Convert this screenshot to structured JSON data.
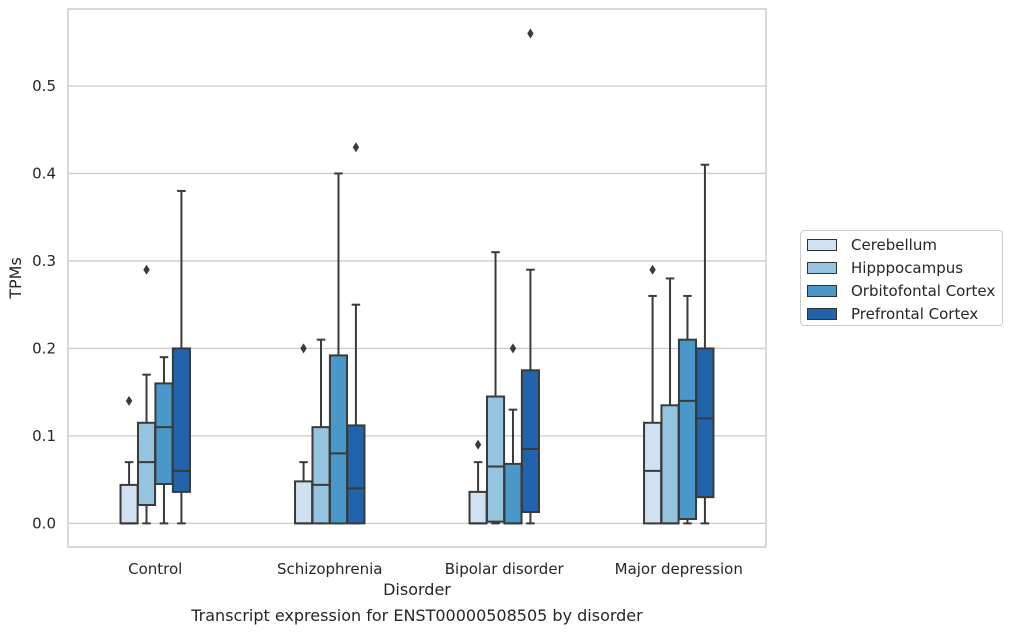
{
  "caption": "Transcript expression for ENST00000508505 by disorder",
  "chart_data": {
    "type": "box",
    "xlabel": "Disorder",
    "ylabel": "TPMs",
    "ylim": [
      -0.027,
      0.588
    ],
    "yticks": [
      0.0,
      0.1,
      0.2,
      0.3,
      0.4,
      0.5
    ],
    "ytick_labels": [
      "0.0",
      "0.1",
      "0.2",
      "0.3",
      "0.4",
      "0.5"
    ],
    "grid": "horizontal",
    "legend_position": "right",
    "categories": [
      "Control",
      "Schizophrenia",
      "Bipolar disorder",
      "Major depression"
    ],
    "series": [
      {
        "name": "Cerebellum",
        "color": "#d0e1f2",
        "boxes": [
          {
            "whisker_low": 0.0,
            "q1": 0.0,
            "median": 0.0,
            "q3": 0.044,
            "whisker_high": 0.07,
            "outliers": [
              0.14
            ]
          },
          {
            "whisker_low": 0.0,
            "q1": 0.0,
            "median": 0.0,
            "q3": 0.048,
            "whisker_high": 0.07,
            "outliers": [
              0.2
            ]
          },
          {
            "whisker_low": 0.0,
            "q1": 0.0,
            "median": 0.0,
            "q3": 0.036,
            "whisker_high": 0.07,
            "outliers": [
              0.09
            ]
          },
          {
            "whisker_low": 0.0,
            "q1": 0.0,
            "median": 0.06,
            "q3": 0.115,
            "whisker_high": 0.26,
            "outliers": [
              0.29
            ]
          }
        ]
      },
      {
        "name": "Hipppocampus",
        "color": "#94c4df",
        "boxes": [
          {
            "whisker_low": 0.0,
            "q1": 0.021,
            "median": 0.07,
            "q3": 0.115,
            "whisker_high": 0.17,
            "outliers": [
              0.29
            ]
          },
          {
            "whisker_low": 0.0,
            "q1": 0.0,
            "median": 0.044,
            "q3": 0.11,
            "whisker_high": 0.21,
            "outliers": []
          },
          {
            "whisker_low": 0.0,
            "q1": 0.002,
            "median": 0.065,
            "q3": 0.145,
            "whisker_high": 0.31,
            "outliers": []
          },
          {
            "whisker_low": 0.0,
            "q1": 0.0,
            "median": 0.0,
            "q3": 0.135,
            "whisker_high": 0.28,
            "outliers": []
          }
        ]
      },
      {
        "name": "Orbitofontal Cortex",
        "color": "#4a98c9",
        "boxes": [
          {
            "whisker_low": 0.0,
            "q1": 0.045,
            "median": 0.11,
            "q3": 0.16,
            "whisker_high": 0.19,
            "outliers": []
          },
          {
            "whisker_low": 0.0,
            "q1": 0.0,
            "median": 0.08,
            "q3": 0.192,
            "whisker_high": 0.4,
            "outliers": []
          },
          {
            "whisker_low": 0.0,
            "q1": 0.0,
            "median": 0.0,
            "q3": 0.068,
            "whisker_high": 0.13,
            "outliers": [
              0.2
            ]
          },
          {
            "whisker_low": 0.0,
            "q1": 0.005,
            "median": 0.14,
            "q3": 0.21,
            "whisker_high": 0.26,
            "outliers": []
          }
        ]
      },
      {
        "name": "Prefrontal Cortex",
        "color": "#2164ab",
        "boxes": [
          {
            "whisker_low": 0.0,
            "q1": 0.036,
            "median": 0.06,
            "q3": 0.2,
            "whisker_high": 0.38,
            "outliers": []
          },
          {
            "whisker_low": 0.0,
            "q1": 0.0,
            "median": 0.04,
            "q3": 0.112,
            "whisker_high": 0.25,
            "outliers": [
              0.43
            ]
          },
          {
            "whisker_low": 0.0,
            "q1": 0.013,
            "median": 0.085,
            "q3": 0.175,
            "whisker_high": 0.29,
            "outliers": [
              0.56
            ]
          },
          {
            "whisker_low": 0.0,
            "q1": 0.03,
            "median": 0.12,
            "q3": 0.2,
            "whisker_high": 0.41,
            "outliers": []
          }
        ]
      }
    ]
  }
}
